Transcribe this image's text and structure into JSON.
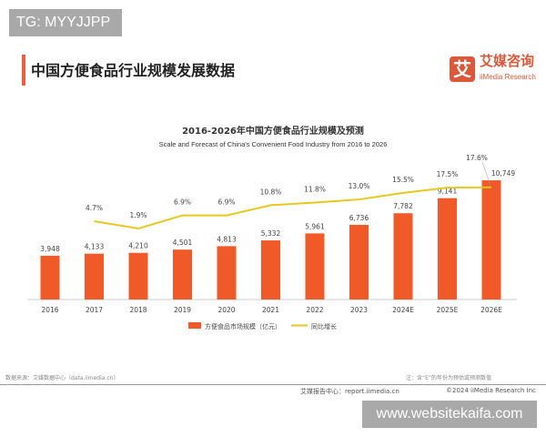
{
  "watermarks": {
    "top_left": "TG: MYYJJPP",
    "bottom_right": "www.websitekaifa.com"
  },
  "header": {
    "title": "中国方便食品行业规模发展数据"
  },
  "logo": {
    "mark": "艾",
    "name_cn": "艾媒咨询",
    "name_en": "iiMedia Research"
  },
  "colors": {
    "bar": "#f05a28",
    "line": "#e8c81e",
    "accent": "#e8603c"
  },
  "chart_data": {
    "type": "bar+line",
    "title": "2016-2026年中国方便食品行业规模及预测",
    "subtitle": "Scale and Forecast of China's Convenient Food Industry from 2016 to 2026",
    "categories": [
      "2016",
      "2017",
      "2018",
      "2019",
      "2020",
      "2021",
      "2022",
      "2023",
      "2024E",
      "2025E",
      "2026E"
    ],
    "series": [
      {
        "name": "方便食品市场规模（亿元）",
        "type": "bar",
        "values": [
          3948,
          4133,
          4210,
          4501,
          4813,
          5332,
          5961,
          6736,
          7782,
          9141,
          10749
        ],
        "labels": [
          "3,948",
          "4,133",
          "4,210",
          "4,501",
          "4,813",
          "5,332",
          "5,961",
          "6,736",
          "7,782",
          "9,141",
          "10,749"
        ]
      },
      {
        "name": "同比增长",
        "type": "line",
        "values": [
          null,
          4.7,
          1.9,
          6.9,
          6.9,
          10.8,
          11.8,
          13.0,
          15.5,
          17.5,
          17.6
        ],
        "labels": [
          "",
          "4.7%",
          "1.9%",
          "6.9%",
          "6.9%",
          "10.8%",
          "11.8%",
          "13.0%",
          "15.5%",
          "17.5%",
          "17.6%"
        ]
      }
    ],
    "legend": "bottom",
    "grid": false
  },
  "footer": {
    "source": "数据来源：艾媒数据中心（data.iimedia.cn）",
    "note": "注：含“E”的年份为预估或预测数值",
    "report_center": "艾媒报告中心：report.iimedia.cn",
    "copyright": "©2024  iiMedia Research Inc"
  }
}
